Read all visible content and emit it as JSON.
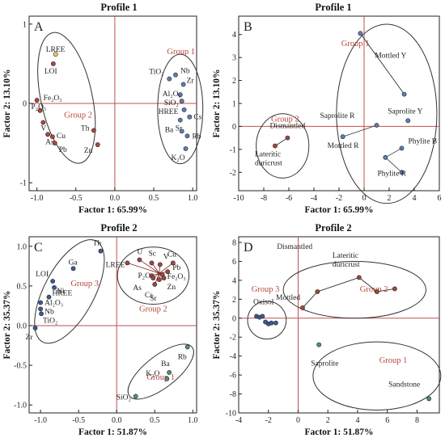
{
  "titles": {
    "A": "Profile 1",
    "B": "Profile 1",
    "C": "Profile 2",
    "D": "Profile 2"
  },
  "chart_data": [
    {
      "type": "scatter",
      "panel": "A",
      "title": "Profile 1",
      "xlabel": "Factor 1: 65.99%",
      "ylabel": "Factor 2: 13.10%",
      "xlim": [
        -1.1,
        1.05
      ],
      "ylim": [
        -1.1,
        1.1
      ],
      "xticks": [
        "-1.0",
        "-0.5",
        "0.0",
        "0.5",
        "1.0"
      ],
      "yticks": [
        "-1",
        "0",
        "1"
      ],
      "groups": [
        "Group 1",
        "Group 2"
      ],
      "points": [
        {
          "label": "LREE",
          "x": -0.76,
          "y": 0.62
        },
        {
          "label": "LOI",
          "x": -0.79,
          "y": 0.5
        },
        {
          "label": "Fe₂O₃",
          "x": -1.0,
          "y": 0.04
        },
        {
          "label": "P₂O₅",
          "x": -0.96,
          "y": -0.09
        },
        {
          "label": "V",
          "x": -0.92,
          "y": -0.24
        },
        {
          "label": "As",
          "x": -0.86,
          "y": -0.39
        },
        {
          "label": "Cu",
          "x": -0.8,
          "y": -0.42
        },
        {
          "label": "Pb",
          "x": -0.77,
          "y": -0.5
        },
        {
          "label": "Th",
          "x": -0.27,
          "y": -0.34
        },
        {
          "label": "Zn",
          "x": -0.22,
          "y": -0.52
        },
        {
          "label": "TiO₂",
          "x": 0.7,
          "y": 0.31
        },
        {
          "label": "Nb",
          "x": 0.78,
          "y": 0.36
        },
        {
          "label": "Zr",
          "x": 0.88,
          "y": 0.24
        },
        {
          "label": "Al₂O₃",
          "x": 0.84,
          "y": 0.11
        },
        {
          "label": "SiO₂",
          "x": 0.86,
          "y": 0.03
        },
        {
          "label": "HREE",
          "x": 0.89,
          "y": -0.08
        },
        {
          "label": "Sr",
          "x": 0.84,
          "y": -0.21
        },
        {
          "label": "Cs",
          "x": 0.96,
          "y": -0.17
        },
        {
          "label": "Ba",
          "x": 0.86,
          "y": -0.35
        },
        {
          "label": "Rb",
          "x": 0.93,
          "y": -0.41
        },
        {
          "label": "K₂O",
          "x": 0.91,
          "y": -0.57
        }
      ]
    },
    {
      "type": "scatter",
      "panel": "B",
      "title": "Profile 1",
      "xlabel": "Factor 1: 65.99%",
      "ylabel": "Factor 2: 13.10%",
      "xlim": [
        -10,
        6
      ],
      "ylim": [
        -2.8,
        4.8
      ],
      "xticks": [
        "-10",
        "-8",
        "-6",
        "-4",
        "-2",
        "0",
        "2",
        "4",
        "6"
      ],
      "yticks": [
        "-2",
        "-1",
        "0",
        "1",
        "2",
        "3",
        "4"
      ],
      "groups": [
        "Group 1",
        "Group 2"
      ],
      "points": [
        {
          "label": "Mottled Y",
          "x": -0.3,
          "y": 4.05
        },
        {
          "label": "",
          "x": 3.2,
          "y": 1.4
        },
        {
          "label": "Saprolite Y",
          "x": 3.5,
          "y": 0.25
        },
        {
          "label": "Saprolite R",
          "x": 1.0,
          "y": 0.05
        },
        {
          "label": "Phylite B",
          "x": 3.0,
          "y": -0.95
        },
        {
          "label": "Mottled R",
          "x": -1.7,
          "y": -0.45
        },
        {
          "label": "",
          "x": 1.7,
          "y": -1.35
        },
        {
          "label": "Phylite R",
          "x": 3.0,
          "y": -2.0
        },
        {
          "label": "Dismantled",
          "x": -6.1,
          "y": -0.5
        },
        {
          "label": "Lateritic duricrust",
          "x": -7.1,
          "y": -0.85
        }
      ]
    },
    {
      "type": "scatter",
      "panel": "C",
      "title": "Profile 2",
      "xlabel": "Factor 1: 51.87%",
      "ylabel": "Factor 2: 35.37%",
      "xlim": [
        -1.15,
        1.05
      ],
      "ylim": [
        -1.1,
        1.12
      ],
      "xticks": [
        "-1.0",
        "-0.5",
        "0.0",
        "0.5",
        "1.0"
      ],
      "yticks": [
        "-1.0",
        "-0.5",
        "0.0",
        "0.5",
        "1.0"
      ],
      "groups": [
        "Group 1",
        "Group 2",
        "Group 3"
      ],
      "points": [
        {
          "label": "Th",
          "x": -0.21,
          "y": 0.94
        },
        {
          "label": "Ga",
          "x": -0.57,
          "y": 0.72
        },
        {
          "label": "LOI",
          "x": -0.84,
          "y": 0.56
        },
        {
          "label": "Ni",
          "x": -0.82,
          "y": 0.48
        },
        {
          "label": "HREE",
          "x": -0.89,
          "y": 0.36
        },
        {
          "label": "Al₂O₃",
          "x": -1.0,
          "y": 0.29
        },
        {
          "label": "Nb",
          "x": -1.0,
          "y": 0.21
        },
        {
          "label": "TiO₂",
          "x": -0.99,
          "y": 0.15
        },
        {
          "label": "Zr",
          "x": -1.07,
          "y": -0.03
        },
        {
          "label": "LREE",
          "x": 0.14,
          "y": 0.79
        },
        {
          "label": "U",
          "x": 0.3,
          "y": 0.83
        },
        {
          "label": "Sc",
          "x": 0.46,
          "y": 0.79
        },
        {
          "label": "V",
          "x": 0.57,
          "y": 0.77
        },
        {
          "label": "Cu",
          "x": 0.74,
          "y": 0.79
        },
        {
          "label": "Pb",
          "x": 0.67,
          "y": 0.68
        },
        {
          "label": "Fe₂O₃",
          "x": 0.6,
          "y": 0.64
        },
        {
          "label": "P₂O₅",
          "x": 0.46,
          "y": 0.63
        },
        {
          "label": "Zn",
          "x": 0.62,
          "y": 0.6
        },
        {
          "label": "As",
          "x": 0.48,
          "y": 0.6
        },
        {
          "label": "Cs",
          "x": 0.56,
          "y": 0.58
        },
        {
          "label": "Sr",
          "x": 0.5,
          "y": 0.52
        },
        {
          "label": "Rb",
          "x": 0.93,
          "y": -0.27
        },
        {
          "label": "Ba",
          "x": 0.69,
          "y": -0.59
        },
        {
          "label": "K₂O",
          "x": 0.66,
          "y": -0.67
        },
        {
          "label": "SiO₂",
          "x": 0.25,
          "y": -0.89
        }
      ]
    },
    {
      "type": "scatter",
      "panel": "D",
      "title": "Profile 2",
      "xlabel": "Factor 1: 51.87%",
      "ylabel": "Factor 2: 35.37%",
      "xlim": [
        -4,
        9.5
      ],
      "ylim": [
        -10,
        8.6
      ],
      "xticks": [
        "-4",
        "-2",
        "0",
        "2",
        "4",
        "6",
        "8"
      ],
      "yticks": [
        "-10",
        "-8",
        "-6",
        "-4",
        "-2",
        "0",
        "2",
        "4",
        "6",
        "8"
      ],
      "groups": [
        "Group 1",
        "Group 2",
        "Group 3"
      ],
      "points": [
        {
          "label": "Oxisol",
          "x": -2.8,
          "y": 0.2
        },
        {
          "label": "",
          "x": -2.6,
          "y": 0.1
        },
        {
          "label": "",
          "x": -2.4,
          "y": 0.2
        },
        {
          "label": "",
          "x": -2.2,
          "y": -0.4
        },
        {
          "label": "",
          "x": -2.0,
          "y": -0.6
        },
        {
          "label": "",
          "x": -1.8,
          "y": -0.5
        },
        {
          "label": "",
          "x": -1.5,
          "y": -0.5
        },
        {
          "label": "Mottled",
          "x": 0.3,
          "y": 1.1
        },
        {
          "label": "Dismantled",
          "x": 1.3,
          "y": 2.8
        },
        {
          "label": "",
          "x": 4.1,
          "y": 4.3
        },
        {
          "label": "Lateritic duricrust",
          "x": 5.3,
          "y": 2.8
        },
        {
          "label": "",
          "x": 6.5,
          "y": 3.1
        },
        {
          "label": "Saprolite",
          "x": 1.4,
          "y": -2.8
        },
        {
          "label": "Sandstone",
          "x": 8.8,
          "y": -8.5
        }
      ]
    }
  ]
}
